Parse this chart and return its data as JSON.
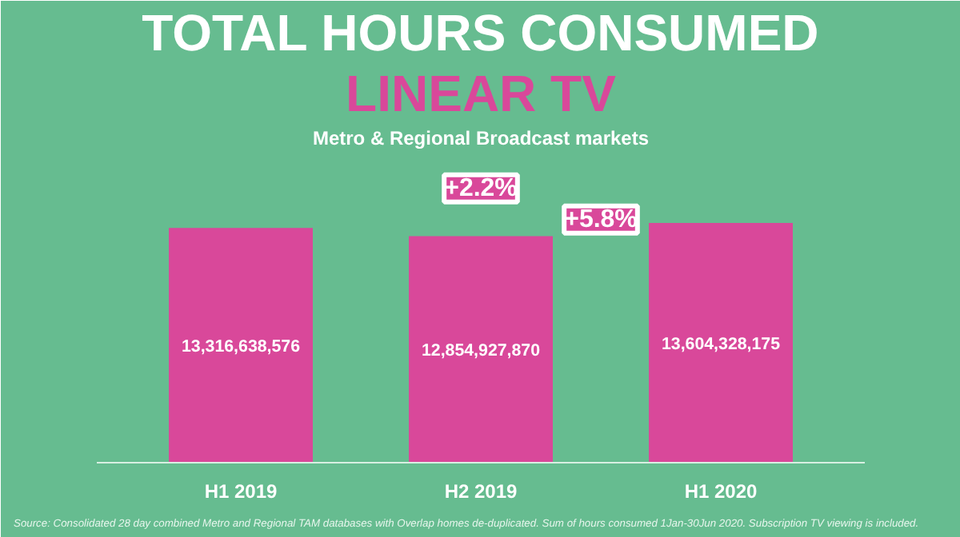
{
  "chart_data": {
    "type": "bar",
    "title": "TOTAL HOURS CONSUMED",
    "subtitle": "LINEAR TV",
    "categories": [
      "H1 2019",
      "H2 2019",
      "H1 2020"
    ],
    "values": [
      13316638576,
      12854927870,
      13604328175
    ],
    "color": "#d9489a",
    "value_labels": [
      "13,316,638,576",
      "12,854,927,870",
      "13,604,328,175"
    ],
    "annotations": [
      "Metro & Regional Broadcast markets",
      "+2.2%",
      "+5.8%",
      "Source: Consolidated 28 day combined Metro and Regional TAM databases with Overlap homes de-duplicated. Sum of hours consumed 1Jan-30Jun 2020. Subscription TV viewing is included."
    ]
  }
}
